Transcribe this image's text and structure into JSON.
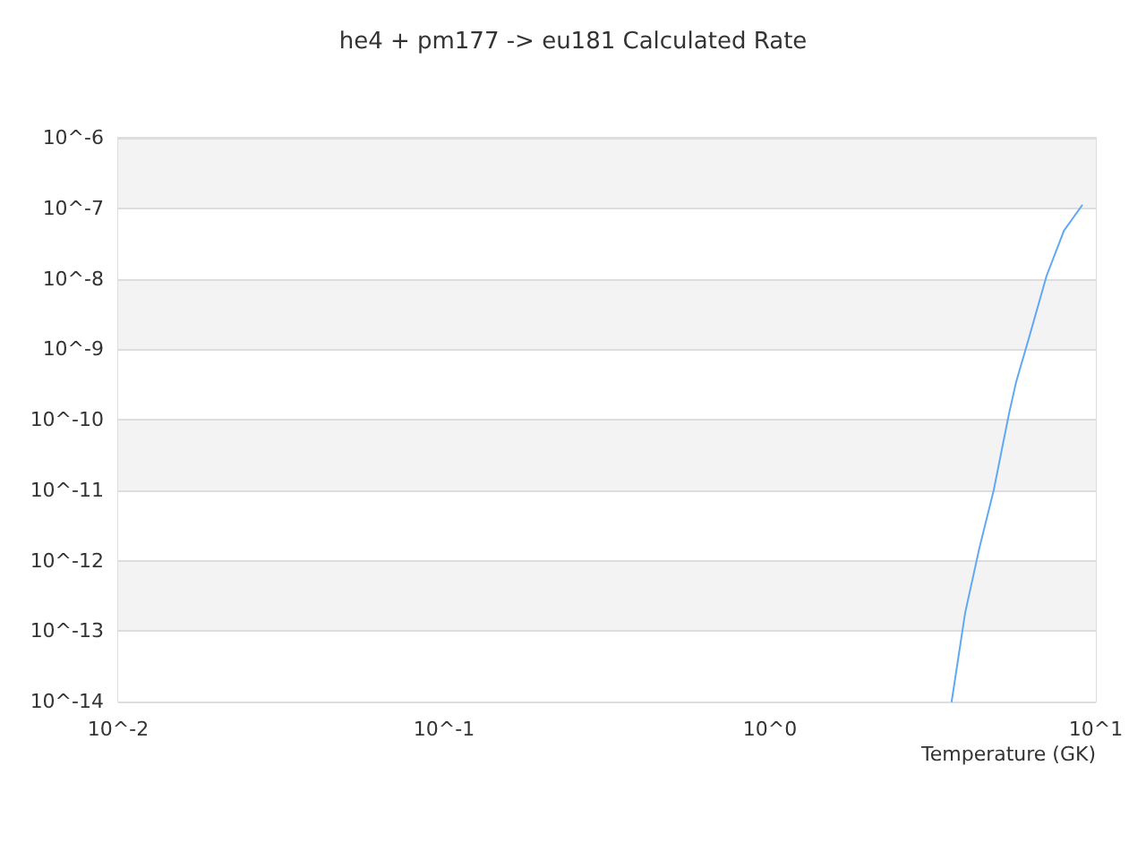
{
  "chart_data": {
    "type": "line",
    "title": "he4 + pm177 -> eu181 Calculated Rate",
    "xlabel": "Temperature (GK)",
    "x": [
      3.61,
      3.97,
      4.39,
      4.86,
      5.41,
      5.7,
      6.22,
      7.06,
      7.98,
      9.07
    ],
    "series": [
      {
        "color": "#5fa8f5",
        "values": [
          1e-14,
          1.8e-13,
          1.5e-12,
          1e-11,
          1.2e-10,
          3.5e-10,
          1.4e-09,
          1.1e-08,
          4.8e-08,
          1.1e-07
        ]
      }
    ],
    "log": "xy",
    "xlim": [
      0.01,
      10
    ],
    "ylim": [
      1e-14,
      1e-06
    ],
    "xticks": [
      {
        "value": 0.01,
        "label": "10^-2"
      },
      {
        "value": 0.1,
        "label": "10^-1"
      },
      {
        "value": 1,
        "label": "10^0"
      },
      {
        "value": 10,
        "label": "10^1"
      }
    ],
    "yticks": [
      {
        "value": 1e-14,
        "label": "10^-14"
      },
      {
        "value": 1e-13,
        "label": "10^-13"
      },
      {
        "value": 1e-12,
        "label": "10^-12"
      },
      {
        "value": 1e-11,
        "label": "10^-11"
      },
      {
        "value": 1e-10,
        "label": "10^-10"
      },
      {
        "value": 1e-09,
        "label": "10^-9"
      },
      {
        "value": 1e-08,
        "label": "10^-8"
      },
      {
        "value": 1e-07,
        "label": "10^-7"
      },
      {
        "value": 1e-06,
        "label": "10^-6"
      }
    ],
    "grid": "y",
    "marker": "none",
    "line_style": "solid"
  }
}
